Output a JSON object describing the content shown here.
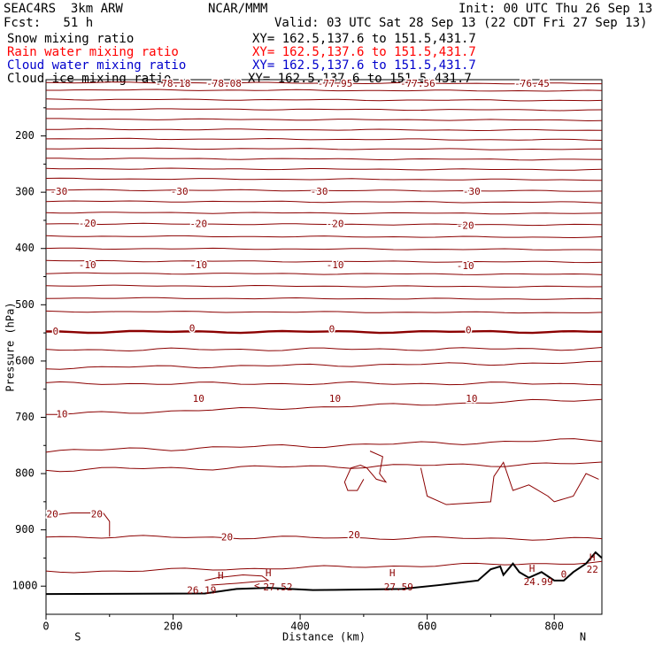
{
  "header": {
    "model": "SEAC4RS  3km ARW",
    "org": "NCAR/MMM",
    "init": "Init: 00 UTC Thu 26 Sep 13",
    "fcst": "Fcst:   51 h",
    "valid": "Valid: 03 UTC Sat 28 Sep 13 (22 CDT Fri 27 Sep 13)",
    "fields": [
      {
        "name": "Snow mixing ratio",
        "xy": "XY= 162.5,137.6 to 151.5,431.7",
        "color": "#000000"
      },
      {
        "name": "Rain water mixing ratio",
        "xy": "XY= 162.5,137.6 to 151.5,431.7",
        "color": "#ff0000"
      },
      {
        "name": "Cloud water mixing ratio",
        "xy": "XY= 162.5,137.6 to 151.5,431.7",
        "color": "#0000cc"
      },
      {
        "name": "Cloud ice mixing ratio",
        "xy": "XY= 162.5,137.6 to 151.5,431.7",
        "color": "#000000"
      }
    ]
  },
  "chart_data": {
    "type": "contour",
    "xlabel": "Distance (km)",
    "ylabel": "Pressure (hPa)",
    "xlim": [
      0,
      875
    ],
    "ylim": [
      1050,
      100
    ],
    "x_ticks": [
      0,
      200,
      400,
      600,
      800
    ],
    "y_ticks": [
      200,
      300,
      400,
      500,
      600,
      700,
      800,
      900,
      1000
    ],
    "left_end_label": "S",
    "right_end_label": "N",
    "contour_color": "#8b0000",
    "terrain_color": "#000000",
    "top_labels": [
      "-78.18",
      "-78.08",
      "-77.95",
      "-77.56",
      "-76.45"
    ],
    "isotherm_labels": [
      {
        "value": "-30",
        "x": [
          20,
          210,
          430,
          670
        ],
        "p": [
          300,
          300,
          300,
          300
        ]
      },
      {
        "value": "-20",
        "x": [
          65,
          240,
          455,
          660
        ],
        "p": [
          356,
          357,
          357,
          360
        ]
      },
      {
        "value": "-10",
        "x": [
          65,
          240,
          455,
          660
        ],
        "p": [
          430,
          430,
          430,
          432
        ]
      },
      {
        "value": "0",
        "x": [
          15,
          230,
          450,
          665
        ],
        "p": [
          548,
          543,
          544,
          546
        ]
      },
      {
        "value": "10",
        "x": [
          25,
          240,
          455,
          670
        ],
        "p": [
          695,
          668,
          668,
          668
        ]
      },
      {
        "value": "20",
        "x": [
          10,
          80,
          285,
          485
        ],
        "p": [
          873,
          873,
          914,
          910
        ]
      }
    ],
    "surface_labels": [
      {
        "text": "26.19",
        "x": 245,
        "p": 1008
      },
      {
        "text": "27.52",
        "x": 365,
        "p": 1003
      },
      {
        "text": "27.59",
        "x": 555,
        "p": 1003
      },
      {
        "text": "24.99",
        "x": 775,
        "p": 993
      },
      {
        "text": "22",
        "x": 860,
        "p": 971
      }
    ],
    "h_markers": [
      {
        "text": "H",
        "x": 275,
        "p": 982
      },
      {
        "text": "H",
        "x": 350,
        "p": 978
      },
      {
        "text": "H",
        "x": 545,
        "p": 978
      },
      {
        "text": "H",
        "x": 765,
        "p": 970
      },
      {
        "text": "H",
        "x": 860,
        "p": 950
      }
    ],
    "extra_labels": [
      {
        "text": "0",
        "x": 815,
        "p": 980
      },
      {
        "text": "<",
        "x": 332,
        "p": 1000
      }
    ]
  }
}
